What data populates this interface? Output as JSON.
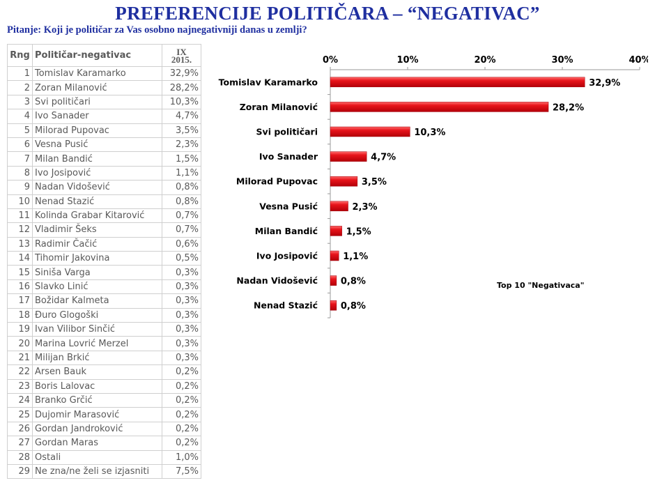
{
  "title": "PREFERENCIJE POLITIČARA – “NEGATIVAC”",
  "question": "Pitanje: Koji je političar za Vas osobno najnegativniji danas u zemlji?",
  "table": {
    "headers": {
      "rank": "Rng",
      "name": "Političar-negativac",
      "period_line1": "IX",
      "period_line2": "2015."
    },
    "rows": [
      {
        "rank": "1",
        "name": "Tomislav Karamarko",
        "value": "32,9%"
      },
      {
        "rank": "2",
        "name": "Zoran Milanović",
        "value": "28,2%"
      },
      {
        "rank": "3",
        "name": "Svi političari",
        "value": "10,3%"
      },
      {
        "rank": "4",
        "name": "Ivo Sanader",
        "value": "4,7%"
      },
      {
        "rank": "5",
        "name": "Milorad Pupovac",
        "value": "3,5%"
      },
      {
        "rank": "6",
        "name": "Vesna Pusić",
        "value": "2,3%"
      },
      {
        "rank": "7",
        "name": "Milan Bandić",
        "value": "1,5%"
      },
      {
        "rank": "8",
        "name": "Ivo Josipović",
        "value": "1,1%"
      },
      {
        "rank": "9",
        "name": "Nadan Vidošević",
        "value": "0,8%"
      },
      {
        "rank": "10",
        "name": "Nenad Stazić",
        "value": "0,8%"
      },
      {
        "rank": "11",
        "name": "Kolinda Grabar Kitarović",
        "value": "0,7%"
      },
      {
        "rank": "12",
        "name": "Vladimir Šeks",
        "value": "0,7%"
      },
      {
        "rank": "13",
        "name": "Radimir Čačić",
        "value": "0,6%"
      },
      {
        "rank": "14",
        "name": "Tihomir Jakovina",
        "value": "0,5%"
      },
      {
        "rank": "15",
        "name": "Siniša Varga",
        "value": "0,3%"
      },
      {
        "rank": "16",
        "name": "Slavko Linić",
        "value": "0,3%"
      },
      {
        "rank": "17",
        "name": "Božidar Kalmeta",
        "value": "0,3%"
      },
      {
        "rank": "18",
        "name": "Đuro Glogoški",
        "value": "0,3%"
      },
      {
        "rank": "19",
        "name": "Ivan Vilibor Sinčić",
        "value": "0,3%"
      },
      {
        "rank": "20",
        "name": "Marina Lovrić Merzel",
        "value": "0,3%"
      },
      {
        "rank": "21",
        "name": "Milijan Brkić",
        "value": "0,3%"
      },
      {
        "rank": "22",
        "name": "Arsen Bauk",
        "value": "0,2%"
      },
      {
        "rank": "23",
        "name": "Boris Lalovac",
        "value": "0,2%"
      },
      {
        "rank": "24",
        "name": "Branko Grčić",
        "value": "0,2%"
      },
      {
        "rank": "25",
        "name": "Dujomir Marasović",
        "value": "0,2%"
      },
      {
        "rank": "26",
        "name": "Gordan Jandroković",
        "value": "0,2%"
      },
      {
        "rank": "27",
        "name": "Gordan Maras",
        "value": "0,2%"
      },
      {
        "rank": "28",
        "name": "Ostali",
        "value": "1,0%"
      },
      {
        "rank": "29",
        "name": "Ne zna/ne želi se izjasniti",
        "value": "7,5%"
      }
    ]
  },
  "chart_data": {
    "type": "bar",
    "orientation": "horizontal",
    "categories": [
      "Tomislav Karamarko",
      "Zoran Milanović",
      "Svi političari",
      "Ivo Sanader",
      "Milorad Pupovac",
      "Vesna Pusić",
      "Milan Bandić",
      "Ivo Josipović",
      "Nadan Vidošević",
      "Nenad Stazić"
    ],
    "values": [
      32.9,
      28.2,
      10.3,
      4.7,
      3.5,
      2.3,
      1.5,
      1.1,
      0.8,
      0.8
    ],
    "data_labels": [
      "32,9%",
      "28,2%",
      "10,3%",
      "4,7%",
      "3,5%",
      "2,3%",
      "1,5%",
      "1,1%",
      "0,8%",
      "0,8%"
    ],
    "xlim": [
      0,
      40
    ],
    "x_ticks": [
      0,
      10,
      20,
      30,
      40
    ],
    "x_tick_labels": [
      "0%",
      "10%",
      "20%",
      "30%",
      "40%"
    ],
    "x_axis_position": "top",
    "annotation": "Top 10 \"Negativaca\"",
    "bar_color": "#e8141b",
    "grid": false
  }
}
